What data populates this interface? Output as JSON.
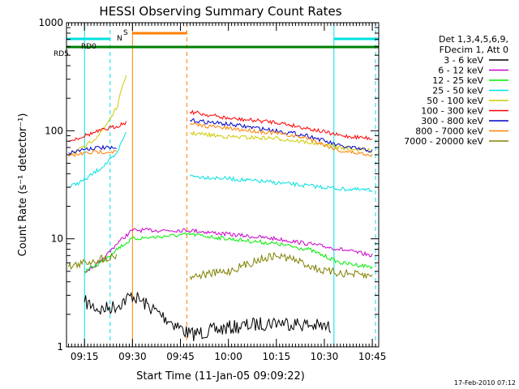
{
  "chart_data": {
    "type": "line",
    "title": "HESSI Observing Summary Count Rates",
    "xlabel": "Start Time (11-Jan-05 09:09:22)",
    "ylabel": "Count Rate (s⁻¹ detector⁻¹)",
    "yscale": "log",
    "ylim": [
      1,
      1000
    ],
    "xlim": [
      "09:09:22",
      "10:47:00"
    ],
    "x_ticks": [
      "09:15",
      "09:30",
      "09:45",
      "10:00",
      "10:15",
      "10:30",
      "10:45"
    ],
    "y_ticks": [
      "1",
      "10",
      "100",
      "1000"
    ],
    "grid": false,
    "legend_position": "right",
    "legend_header": [
      "Det 1,3,4,5,6,9,",
      "FDecim 1, Att 0"
    ],
    "series": [
      {
        "name": "3 - 6 keV",
        "color": "#000000",
        "points": [
          [
            "09:15:00",
            2.6
          ],
          [
            "09:20:00",
            2.2
          ],
          [
            "09:25:00",
            2.4
          ],
          [
            "09:30:00",
            3.0
          ],
          [
            "09:48:00",
            1.3
          ],
          [
            "10:00:00",
            1.5
          ],
          [
            "10:15:00",
            1.7
          ],
          [
            "10:25:00",
            1.6
          ],
          [
            "10:32:00",
            1.5
          ]
        ]
      },
      {
        "name": "6 - 12 keV",
        "color": "#cc00cc",
        "points": [
          [
            "09:15:00",
            5.0
          ],
          [
            "09:20:00",
            6.0
          ],
          [
            "09:25:00",
            9.0
          ],
          [
            "09:30:00",
            12.0
          ],
          [
            "09:48:00",
            12.0
          ],
          [
            "10:00:00",
            11.0
          ],
          [
            "10:15:00",
            10.0
          ],
          [
            "10:25:00",
            9.0
          ],
          [
            "10:35:00",
            8.0
          ],
          [
            "10:45:00",
            7.0
          ]
        ]
      },
      {
        "name": "12 - 25 keV",
        "color": "#00ee00",
        "points": [
          [
            "09:15:00",
            5.0
          ],
          [
            "09:20:00",
            6.0
          ],
          [
            "09:25:00",
            8.0
          ],
          [
            "09:30:00",
            10.0
          ],
          [
            "09:48:00",
            11.0
          ],
          [
            "10:00:00",
            10.0
          ],
          [
            "10:15:00",
            9.0
          ],
          [
            "10:25:00",
            8.0
          ],
          [
            "10:35:00",
            6.0
          ],
          [
            "10:45:00",
            5.5
          ]
        ]
      },
      {
        "name": "25 - 50 keV",
        "color": "#00e0e0",
        "points": [
          [
            "09:10:00",
            30
          ],
          [
            "09:15:00",
            35
          ],
          [
            "09:20:00",
            45
          ],
          [
            "09:25:00",
            60
          ],
          [
            "09:28:00",
            100
          ],
          [
            "09:48:00",
            38
          ],
          [
            "10:00:00",
            36
          ],
          [
            "10:15:00",
            33
          ],
          [
            "10:25:00",
            31
          ],
          [
            "10:35:00",
            29
          ],
          [
            "10:45:00",
            28
          ]
        ]
      },
      {
        "name": "50 - 100 keV",
        "color": "#cccc00",
        "points": [
          [
            "09:10:00",
            60
          ],
          [
            "09:15:00",
            70
          ],
          [
            "09:20:00",
            95
          ],
          [
            "09:25:00",
            160
          ],
          [
            "09:28:00",
            330
          ],
          [
            "09:48:00",
            95
          ],
          [
            "10:00:00",
            88
          ],
          [
            "10:15:00",
            85
          ],
          [
            "10:25:00",
            78
          ],
          [
            "10:35:00",
            70
          ],
          [
            "10:45:00",
            65
          ]
        ]
      },
      {
        "name": "100 - 300 keV",
        "color": "#ff0000",
        "points": [
          [
            "09:10:00",
            80
          ],
          [
            "09:15:00",
            90
          ],
          [
            "09:20:00",
            100
          ],
          [
            "09:25:00",
            110
          ],
          [
            "09:28:00",
            120
          ],
          [
            "09:48:00",
            150
          ],
          [
            "10:00:00",
            130
          ],
          [
            "10:15:00",
            120
          ],
          [
            "10:25:00",
            105
          ],
          [
            "10:35:00",
            90
          ],
          [
            "10:45:00",
            85
          ]
        ]
      },
      {
        "name": "300 - 800 keV",
        "color": "#0000cc",
        "points": [
          [
            "09:10:00",
            62
          ],
          [
            "09:15:00",
            68
          ],
          [
            "09:20:00",
            70
          ],
          [
            "09:25:00",
            68
          ],
          [
            "09:48:00",
            125
          ],
          [
            "10:00:00",
            115
          ],
          [
            "10:15:00",
            100
          ],
          [
            "10:25:00",
            90
          ],
          [
            "10:35:00",
            72
          ],
          [
            "10:45:00",
            65
          ]
        ]
      },
      {
        "name": "800 - 7000 keV",
        "color": "#ff8000",
        "points": [
          [
            "09:10:00",
            58
          ],
          [
            "09:15:00",
            62
          ],
          [
            "09:20:00",
            64
          ],
          [
            "09:25:00",
            64
          ],
          [
            "09:48:00",
            115
          ],
          [
            "10:00:00",
            105
          ],
          [
            "10:15:00",
            95
          ],
          [
            "10:25:00",
            85
          ],
          [
            "10:35:00",
            65
          ],
          [
            "10:45:00",
            60
          ]
        ]
      },
      {
        "name": "7000 - 20000 keV",
        "color": "#808000",
        "points": [
          [
            "09:10:00",
            5.5
          ],
          [
            "09:15:00",
            6.0
          ],
          [
            "09:20:00",
            6.5
          ],
          [
            "09:25:00",
            7.0
          ],
          [
            "09:48:00",
            4.5
          ],
          [
            "10:00:00",
            5.0
          ],
          [
            "10:10:00",
            6.5
          ],
          [
            "10:15:00",
            7.0
          ],
          [
            "10:20:00",
            6.5
          ],
          [
            "10:30:00",
            5.0
          ],
          [
            "10:45:00",
            4.5
          ]
        ]
      }
    ],
    "status_flags": [
      {
        "label": "N",
        "color": "#00e0e0",
        "intervals": [
          [
            "09:09:22",
            "09:23:00"
          ],
          [
            "10:33:00",
            "10:47:00"
          ]
        ]
      },
      {
        "label": "S",
        "color": "#ff8000",
        "intervals": [
          [
            "09:30:00",
            "09:47:00"
          ]
        ]
      },
      {
        "label": "RD0",
        "color": "#008000",
        "intervals": [
          [
            "09:09:22",
            "10:47:00"
          ]
        ]
      },
      {
        "label": "RD5",
        "color": "#008000",
        "intervals": []
      }
    ],
    "vertical_markers": [
      {
        "time": "09:15:00",
        "color": "#00e0e0",
        "style": "solid"
      },
      {
        "time": "09:23:00",
        "color": "#00e0e0",
        "style": "dashed"
      },
      {
        "time": "09:30:00",
        "color": "#ff8000",
        "style": "solid"
      },
      {
        "time": "09:47:00",
        "color": "#ff8000",
        "style": "dashed"
      },
      {
        "time": "10:33:00",
        "color": "#00e0e0",
        "style": "solid"
      },
      {
        "time": "10:46:00",
        "color": "#00e0e0",
        "style": "dashed"
      }
    ]
  },
  "footer": {
    "date_stamp": "17-Feb-2010 07:12"
  }
}
